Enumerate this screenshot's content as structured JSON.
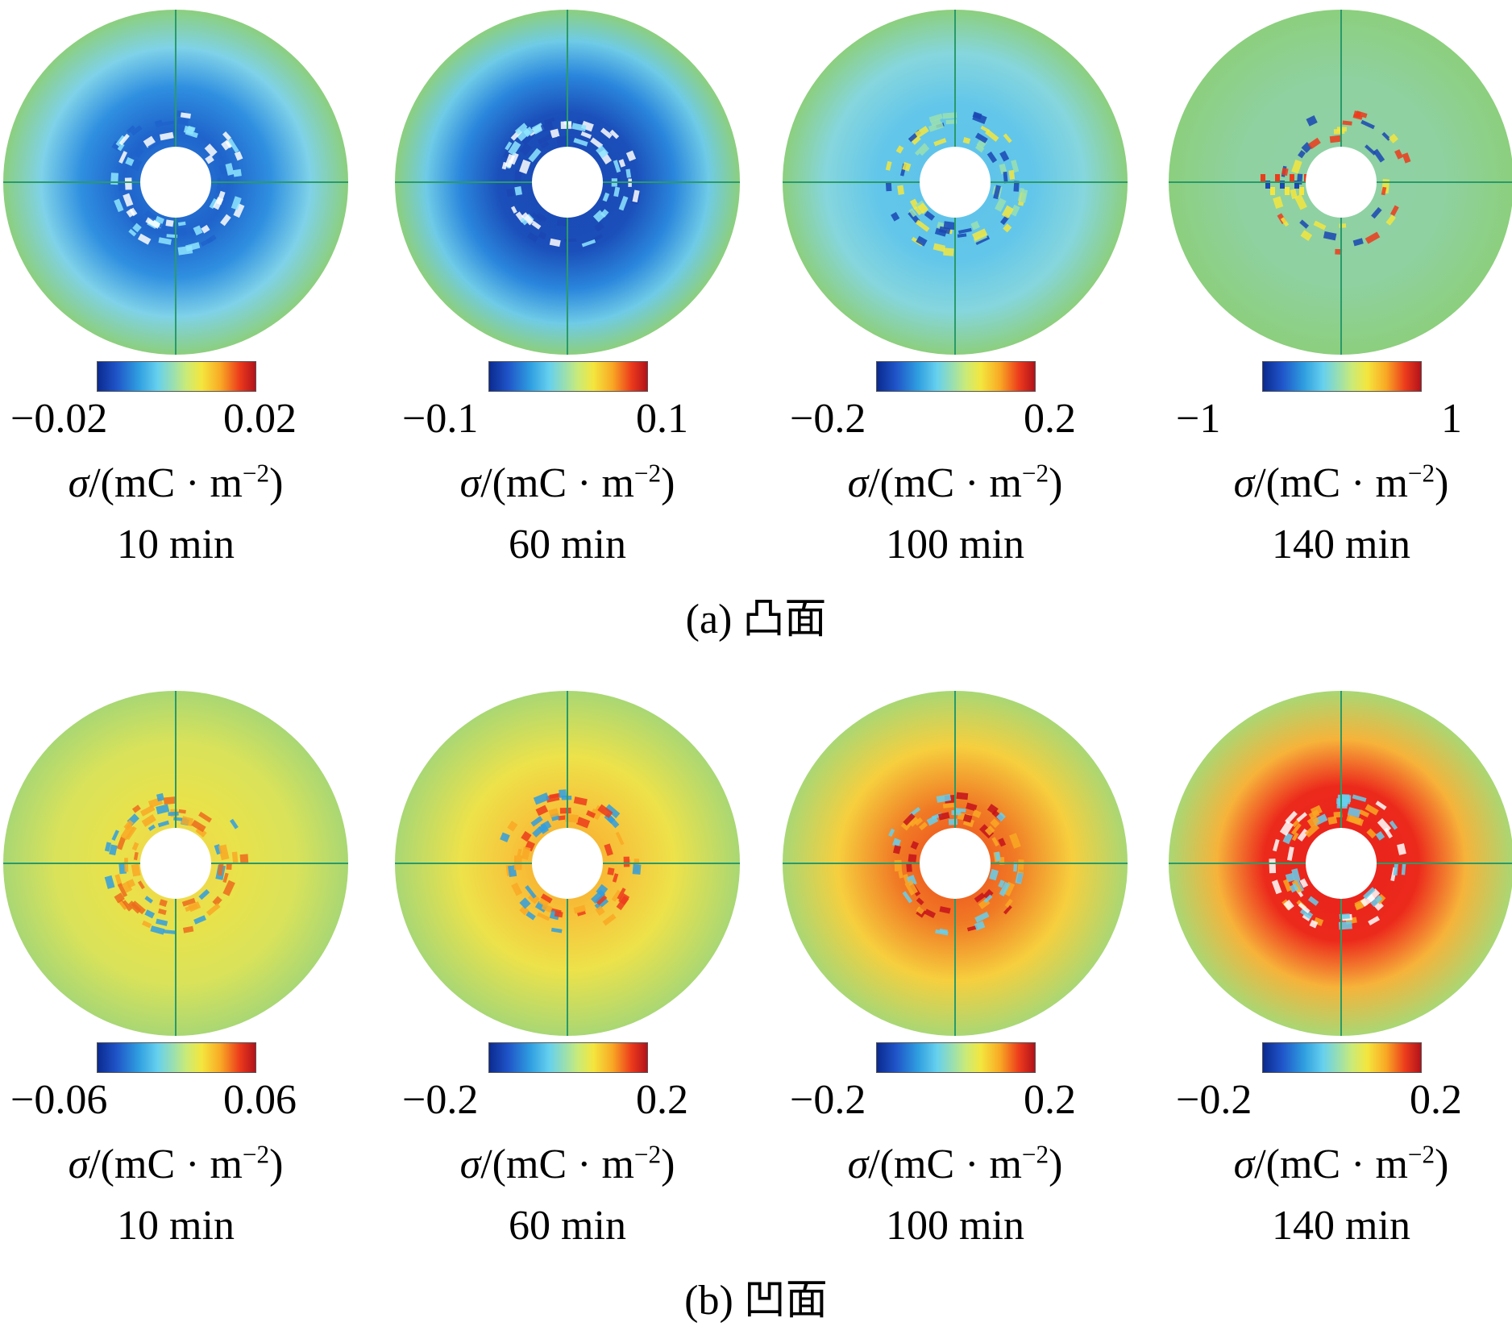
{
  "figure": {
    "unit_symbol": "σ",
    "unit_rest": "/(mC · m",
    "unit_exp": "−2",
    "unit_close": ")",
    "rows": [
      {
        "caption": "(a)  凸面",
        "panels": [
          {
            "min": "−0.02",
            "max": "0.02",
            "time": "10 min"
          },
          {
            "min": "−0.1",
            "max": "0.1",
            "time": "60 min"
          },
          {
            "min": "−0.2",
            "max": "0.2",
            "time": "100 min"
          },
          {
            "min": "−1",
            "max": "1",
            "time": "140 min"
          }
        ]
      },
      {
        "caption": "(b)  凹面",
        "panels": [
          {
            "min": "−0.06",
            "max": "0.06",
            "time": "10 min"
          },
          {
            "min": "−0.2",
            "max": "0.2",
            "time": "60 min"
          },
          {
            "min": "−0.2",
            "max": "0.2",
            "time": "100 min"
          },
          {
            "min": "−0.2",
            "max": "0.2",
            "time": "140 min"
          }
        ]
      }
    ],
    "colormap": [
      "#0b2a8f",
      "#2f9ee0",
      "#9adfb0",
      "#f4e63e",
      "#ec3b1c",
      "#b3121b"
    ]
  }
}
